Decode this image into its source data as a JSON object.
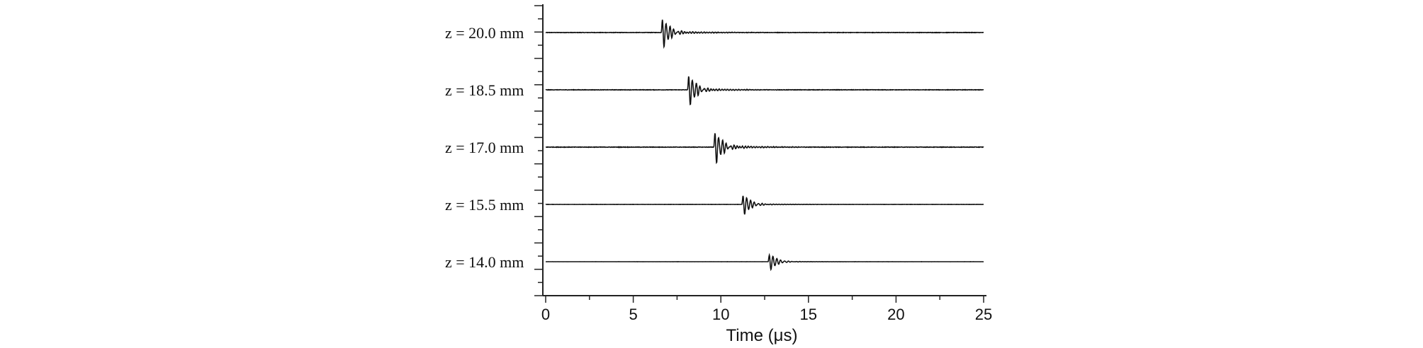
{
  "chart_data": {
    "type": "line",
    "xlabel": "Time (μs)",
    "xlim": [
      0,
      25
    ],
    "xticks": [
      0,
      5,
      10,
      15,
      20,
      25
    ],
    "grid": false,
    "series": [
      {
        "name": "z = 20.0 mm",
        "onset": 6.6,
        "peak_time": 6.9,
        "amplitude": 1.0,
        "noise": 0.05
      },
      {
        "name": "z = 18.5 mm",
        "onset": 8.1,
        "peak_time": 8.4,
        "amplitude": 1.05,
        "noise": 0.05
      },
      {
        "name": "z = 17.0 mm",
        "onset": 9.6,
        "peak_time": 10.0,
        "amplitude": 1.1,
        "noise": 0.06
      },
      {
        "name": "z = 15.5 mm",
        "onset": 11.2,
        "peak_time": 11.6,
        "amplitude": 0.7,
        "noise": 0.02
      },
      {
        "name": "z = 14.0 mm",
        "onset": 12.7,
        "peak_time": 13.1,
        "amplitude": 0.55,
        "noise": 0.01
      }
    ]
  }
}
